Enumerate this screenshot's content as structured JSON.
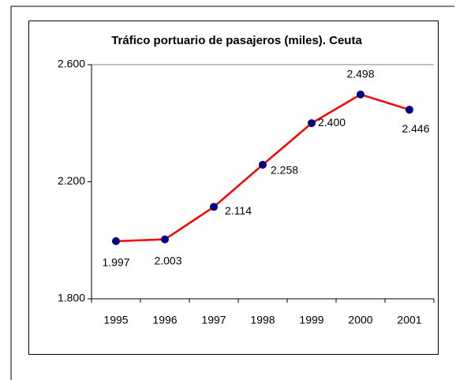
{
  "chart_data": {
    "type": "line",
    "title": "Tráfico portuario de pasajeros (miles). Ceuta",
    "categories": [
      "1995",
      "1996",
      "1997",
      "1998",
      "1999",
      "2000",
      "2001"
    ],
    "series": [
      {
        "color": "#ff0000",
        "marker_color": "#000080",
        "values": [
          1997,
          2003,
          2114,
          2258,
          2400,
          2498,
          2446
        ],
        "value_labels": [
          "1.997",
          "2.003",
          "2.114",
          "2.258",
          "2.400",
          "2.498",
          "2.446"
        ]
      }
    ],
    "ylim": [
      1800,
      2600
    ],
    "yticks": [
      {
        "value": 1800,
        "label": "1.800"
      },
      {
        "value": 2200,
        "label": "2.200"
      },
      {
        "value": 2600,
        "label": "2.600"
      }
    ]
  }
}
